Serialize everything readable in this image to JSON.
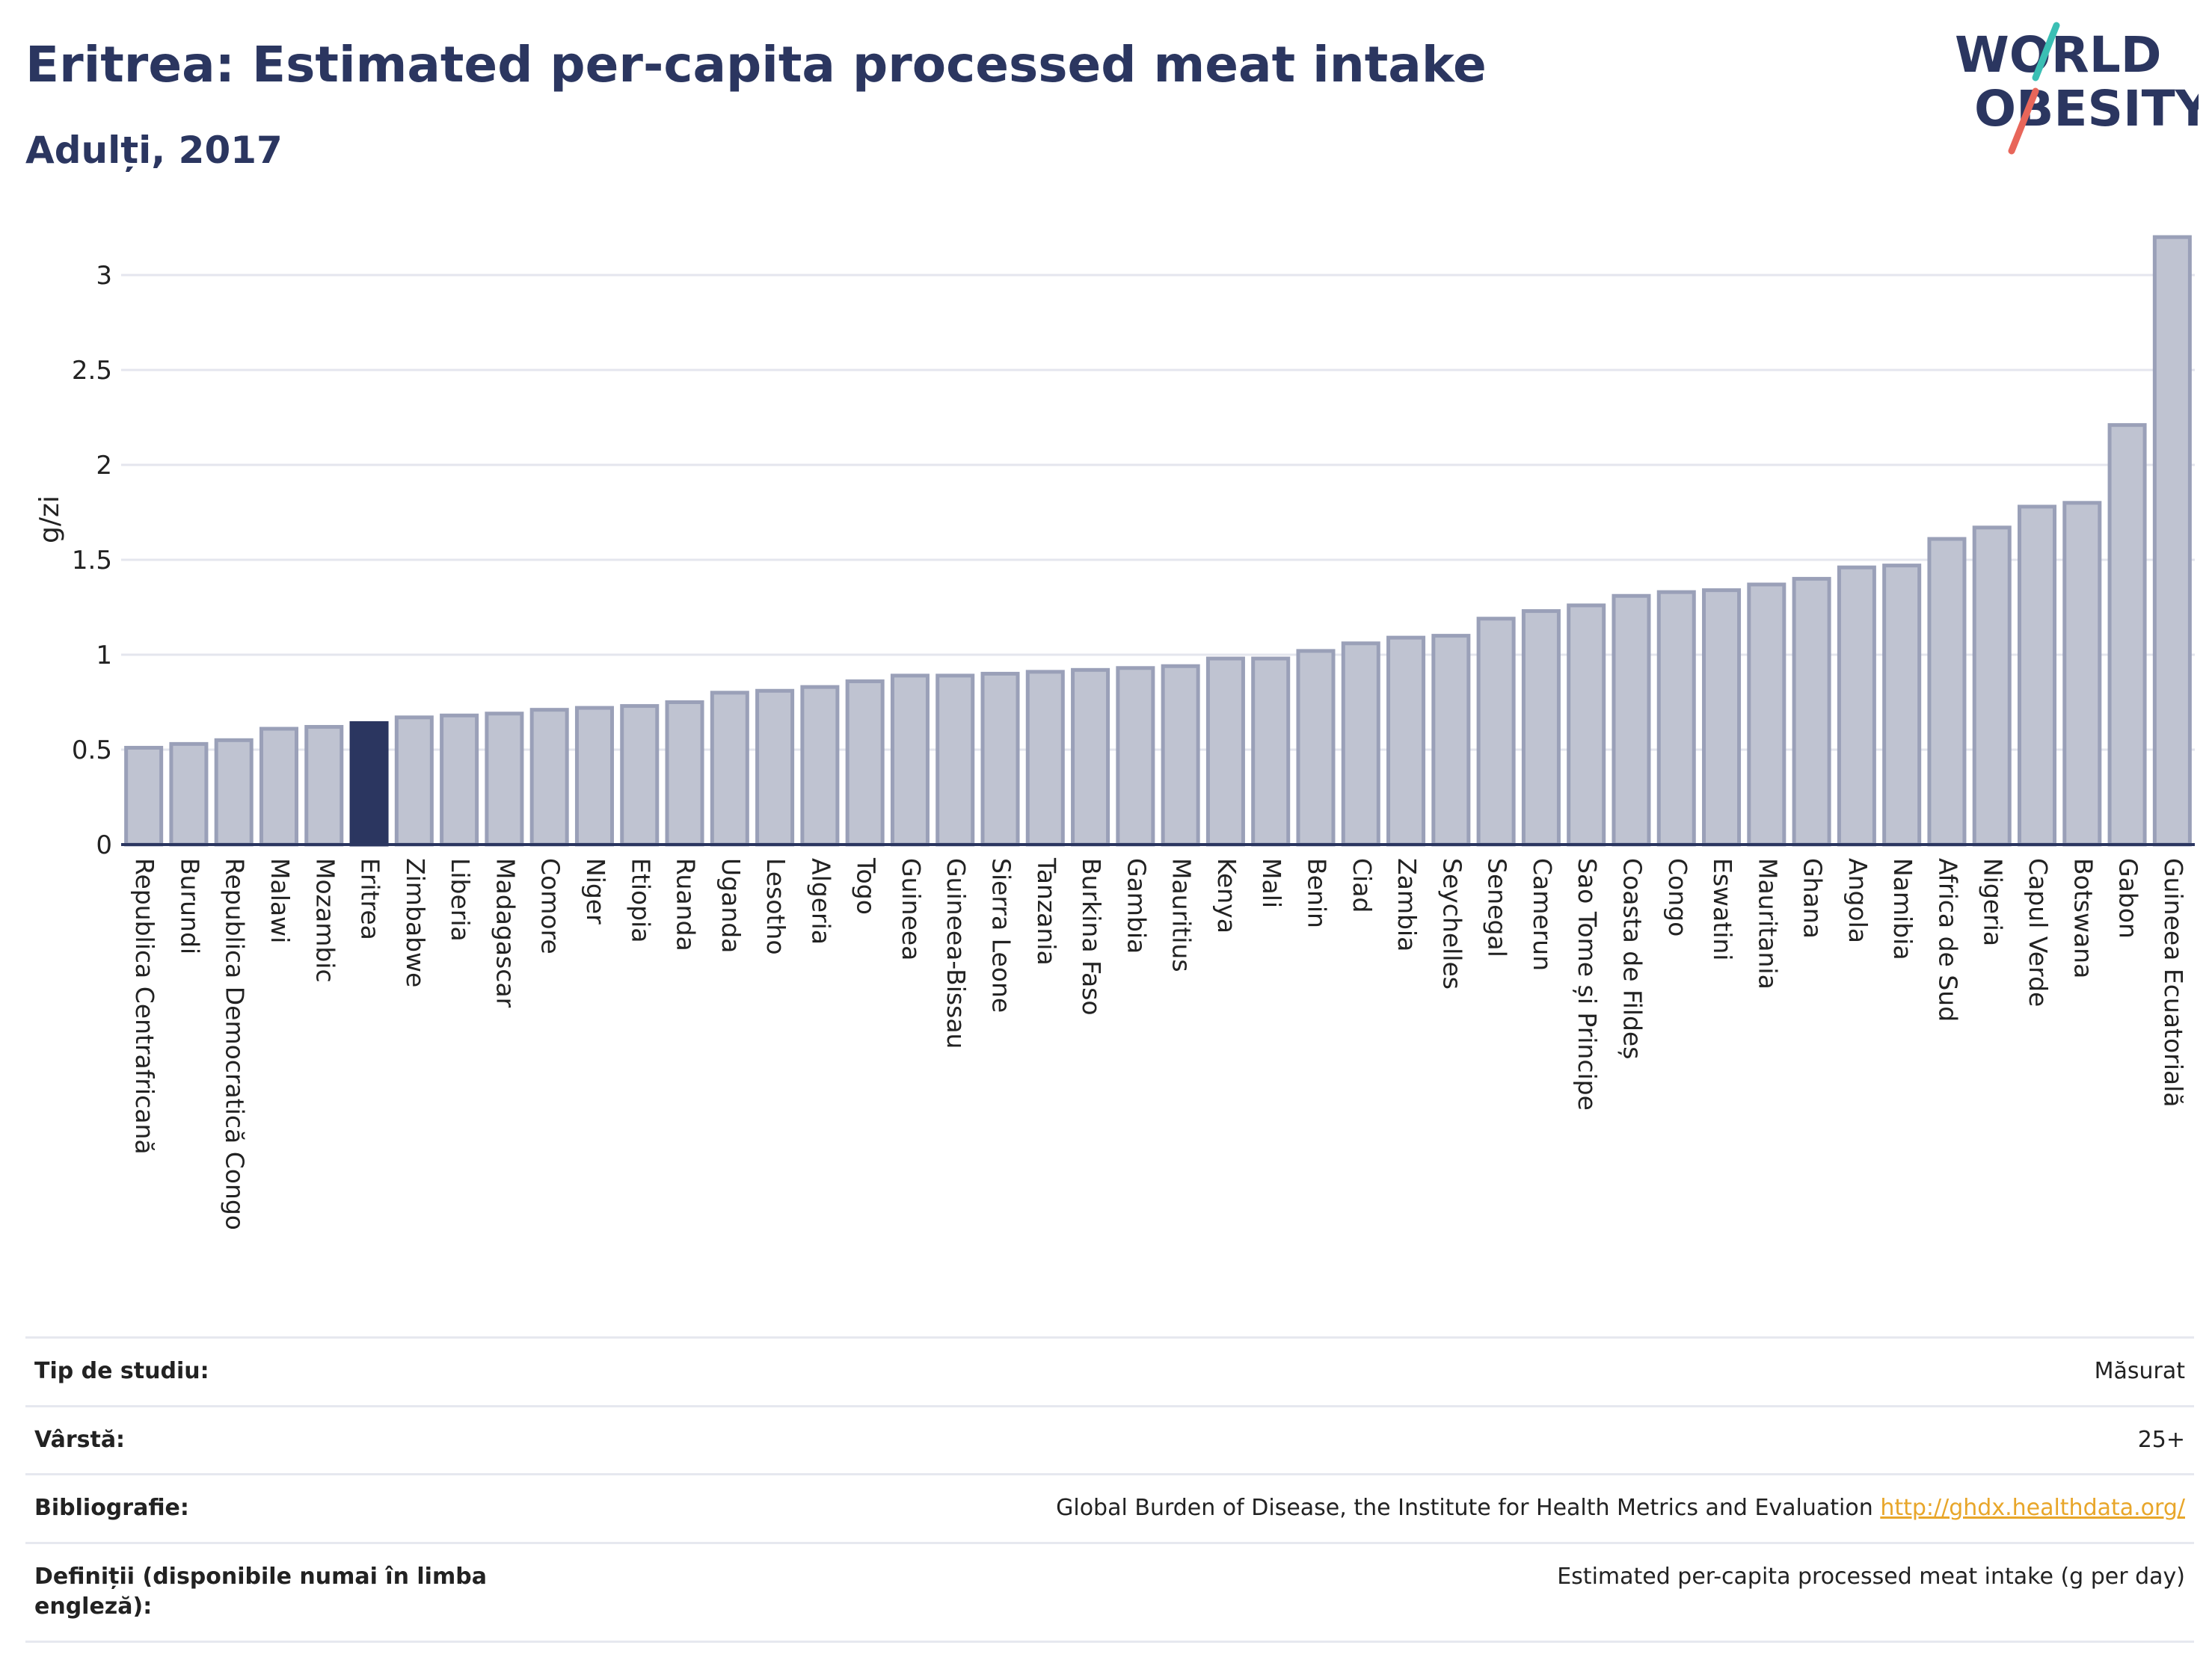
{
  "header": {
    "title": "Eritrea: Estimated per-capita processed meat intake",
    "subtitle": "Adulți, 2017"
  },
  "logo": {
    "line1": "WORLD",
    "line2": "OBESITY"
  },
  "colors": {
    "bar": "#bfc3d1",
    "bar_stroke": "#9aa0b8",
    "highlight": "#2b3660",
    "grid": "#e4e6ee",
    "axis": "#2b3660"
  },
  "chart_data": {
    "type": "bar",
    "ylabel": "g/zi",
    "ylim": [
      0,
      3.3
    ],
    "yticks": [
      0,
      0.5,
      1,
      1.5,
      2,
      2.5,
      3
    ],
    "ytick_labels": [
      "0",
      "0.5",
      "1",
      "1.5",
      "2",
      "2.5",
      "3"
    ],
    "highlight": "Eritrea",
    "grid": true,
    "categories": [
      "Republica Centrafricană",
      "Burundi",
      "Republica Democratică Congo",
      "Malawi",
      "Mozambic",
      "Eritrea",
      "Zimbabwe",
      "Liberia",
      "Madagascar",
      "Comore",
      "Niger",
      "Etiopia",
      "Ruanda",
      "Uganda",
      "Lesotho",
      "Algeria",
      "Togo",
      "Guineea",
      "Guineea-Bissau",
      "Sierra Leone",
      "Tanzania",
      "Burkina Faso",
      "Gambia",
      "Mauritius",
      "Kenya",
      "Mali",
      "Benin",
      "Ciad",
      "Zambia",
      "Seychelles",
      "Senegal",
      "Camerun",
      "Sao Tome și Principe",
      "Coasta de Fildeș",
      "Congo",
      "Eswatini",
      "Mauritania",
      "Ghana",
      "Angola",
      "Namibia",
      "Africa de Sud",
      "Nigeria",
      "Capul Verde",
      "Botswana",
      "Gabon",
      "Guineea Ecuatorială"
    ],
    "values": [
      0.51,
      0.53,
      0.55,
      0.61,
      0.62,
      0.64,
      0.67,
      0.68,
      0.69,
      0.71,
      0.72,
      0.73,
      0.75,
      0.8,
      0.81,
      0.83,
      0.86,
      0.89,
      0.89,
      0.9,
      0.91,
      0.92,
      0.93,
      0.94,
      0.98,
      0.98,
      1.02,
      1.06,
      1.09,
      1.1,
      1.19,
      1.23,
      1.26,
      1.31,
      1.33,
      1.34,
      1.37,
      1.4,
      1.46,
      1.47,
      1.61,
      1.67,
      1.78,
      1.8,
      2.21,
      3.2
    ]
  },
  "info": [
    {
      "key": "Tip de studiu:",
      "value": "Măsurat"
    },
    {
      "key": "Vârstă:",
      "value": "25+"
    },
    {
      "key": "Bibliografie:",
      "value": "Global Burden of Disease, the Institute for Health Metrics and Evaluation",
      "link": "http://ghdx.healthdata.org/"
    },
    {
      "key": "Definiții (disponibile numai în limba engleză):",
      "value": "Estimated per-capita processed meat intake (g per day)"
    }
  ]
}
